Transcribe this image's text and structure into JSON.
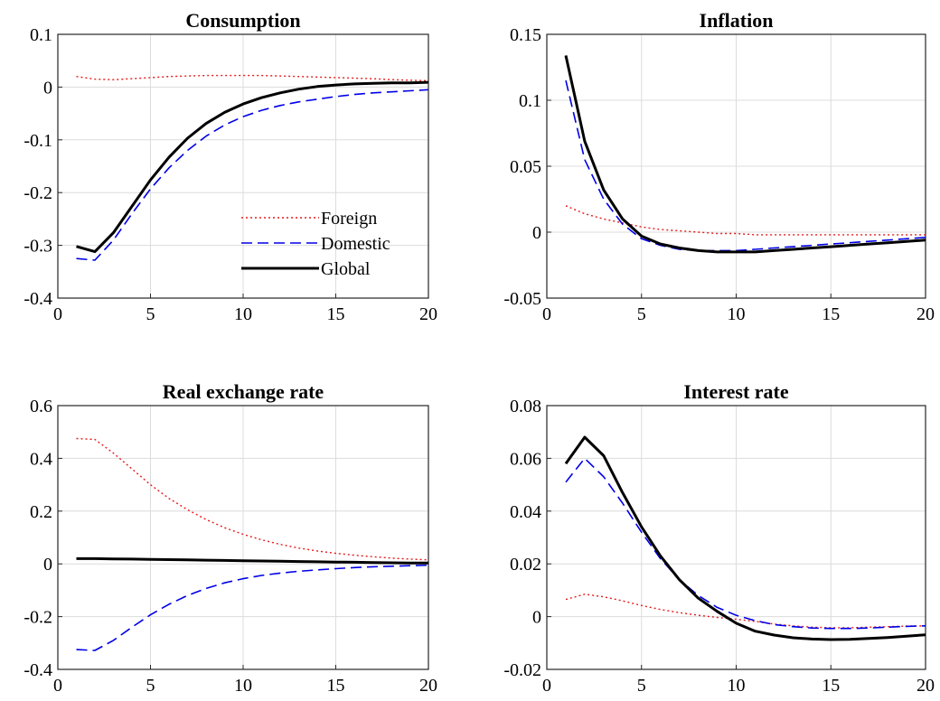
{
  "chart_data": [
    {
      "type": "line",
      "title": "Consumption",
      "xlabel": "",
      "ylabel": "",
      "xlim": [
        0,
        20
      ],
      "ylim": [
        -0.4,
        0.1
      ],
      "xticks": [
        0,
        5,
        10,
        15,
        20
      ],
      "yticks": [
        -0.4,
        -0.3,
        -0.2,
        -0.1,
        0,
        0.1
      ],
      "xtick_labels": [
        "0",
        "5",
        "10",
        "15",
        "20"
      ],
      "ytick_labels": [
        "-0.4",
        "-0.3",
        "-0.2",
        "-0.1",
        "0",
        "0.1"
      ],
      "grid": true,
      "legend": {
        "placement": "lower-right",
        "entries": [
          "Foreign",
          "Domestic",
          "Global"
        ]
      },
      "x": [
        1,
        2,
        3,
        4,
        5,
        6,
        7,
        8,
        9,
        10,
        11,
        12,
        13,
        14,
        15,
        16,
        17,
        18,
        19,
        20
      ],
      "series": [
        {
          "name": "Foreign",
          "style": "dotted",
          "color": "#e41a1c",
          "values": [
            0.02,
            0.015,
            0.014,
            0.016,
            0.018,
            0.02,
            0.021,
            0.022,
            0.022,
            0.022,
            0.022,
            0.021,
            0.02,
            0.019,
            0.018,
            0.017,
            0.016,
            0.014,
            0.013,
            0.012
          ]
        },
        {
          "name": "Domestic",
          "style": "dashed",
          "color": "#0000e6",
          "values": [
            -0.325,
            -0.328,
            -0.29,
            -0.24,
            -0.193,
            -0.153,
            -0.12,
            -0.093,
            -0.072,
            -0.056,
            -0.044,
            -0.035,
            -0.028,
            -0.023,
            -0.018,
            -0.014,
            -0.011,
            -0.009,
            -0.007,
            -0.005
          ]
        },
        {
          "name": "Global",
          "style": "solid",
          "color": "#000000",
          "values": [
            -0.302,
            -0.312,
            -0.276,
            -0.226,
            -0.176,
            -0.133,
            -0.097,
            -0.069,
            -0.048,
            -0.032,
            -0.02,
            -0.011,
            -0.004,
            0.001,
            0.004,
            0.006,
            0.007,
            0.008,
            0.008,
            0.009
          ]
        }
      ]
    },
    {
      "type": "line",
      "title": "Inflation",
      "xlabel": "",
      "ylabel": "",
      "xlim": [
        0,
        20
      ],
      "ylim": [
        -0.05,
        0.15
      ],
      "xticks": [
        0,
        5,
        10,
        15,
        20
      ],
      "yticks": [
        -0.05,
        0,
        0.05,
        0.1,
        0.15
      ],
      "xtick_labels": [
        "0",
        "5",
        "10",
        "15",
        "20"
      ],
      "ytick_labels": [
        "-0.05",
        "0",
        "0.05",
        "0.1",
        "0.15"
      ],
      "grid": true,
      "x": [
        1,
        2,
        3,
        4,
        5,
        6,
        7,
        8,
        9,
        10,
        11,
        12,
        13,
        14,
        15,
        16,
        17,
        18,
        19,
        20
      ],
      "series": [
        {
          "name": "Foreign",
          "style": "dotted",
          "color": "#e41a1c",
          "values": [
            0.02,
            0.014,
            0.01,
            0.007,
            0.004,
            0.002,
            0.001,
            0.0,
            -0.001,
            -0.001,
            -0.002,
            -0.002,
            -0.002,
            -0.002,
            -0.002,
            -0.002,
            -0.002,
            -0.002,
            -0.002,
            -0.002
          ]
        },
        {
          "name": "Domestic",
          "style": "dashed",
          "color": "#0000e6",
          "values": [
            0.115,
            0.055,
            0.025,
            0.006,
            -0.005,
            -0.01,
            -0.013,
            -0.014,
            -0.014,
            -0.014,
            -0.013,
            -0.012,
            -0.011,
            -0.01,
            -0.009,
            -0.008,
            -0.007,
            -0.006,
            -0.005,
            -0.004
          ]
        },
        {
          "name": "Global",
          "style": "solid",
          "color": "#000000",
          "values": [
            0.134,
            0.069,
            0.032,
            0.01,
            -0.003,
            -0.009,
            -0.012,
            -0.014,
            -0.015,
            -0.015,
            -0.015,
            -0.014,
            -0.013,
            -0.012,
            -0.011,
            -0.01,
            -0.009,
            -0.008,
            -0.007,
            -0.006
          ]
        }
      ]
    },
    {
      "type": "line",
      "title": "Real exchange rate",
      "xlabel": "",
      "ylabel": "",
      "xlim": [
        0,
        20
      ],
      "ylim": [
        -0.4,
        0.6
      ],
      "xticks": [
        0,
        5,
        10,
        15,
        20
      ],
      "yticks": [
        -0.4,
        -0.2,
        0,
        0.2,
        0.4,
        0.6
      ],
      "xtick_labels": [
        "0",
        "5",
        "10",
        "15",
        "20"
      ],
      "ytick_labels": [
        "-0.4",
        "-0.2",
        "0",
        "0.2",
        "0.4",
        "0.6"
      ],
      "grid": true,
      "x": [
        1,
        2,
        3,
        4,
        5,
        6,
        7,
        8,
        9,
        10,
        11,
        12,
        13,
        14,
        15,
        16,
        17,
        18,
        19,
        20
      ],
      "series": [
        {
          "name": "Foreign",
          "style": "dotted",
          "color": "#e41a1c",
          "values": [
            0.475,
            0.472,
            0.42,
            0.36,
            0.3,
            0.248,
            0.205,
            0.168,
            0.137,
            0.112,
            0.091,
            0.074,
            0.06,
            0.049,
            0.04,
            0.033,
            0.027,
            0.022,
            0.018,
            0.015
          ]
        },
        {
          "name": "Domestic",
          "style": "dashed",
          "color": "#0000e6",
          "values": [
            -0.325,
            -0.328,
            -0.29,
            -0.24,
            -0.193,
            -0.153,
            -0.12,
            -0.093,
            -0.072,
            -0.056,
            -0.044,
            -0.035,
            -0.028,
            -0.023,
            -0.018,
            -0.014,
            -0.011,
            -0.009,
            -0.007,
            -0.005
          ]
        },
        {
          "name": "Global",
          "style": "solid",
          "color": "#000000",
          "values": [
            0.02,
            0.02,
            0.019,
            0.018,
            0.017,
            0.016,
            0.015,
            0.014,
            0.013,
            0.012,
            0.011,
            0.01,
            0.009,
            0.008,
            0.007,
            0.006,
            0.005,
            0.004,
            0.003,
            0.003
          ]
        }
      ]
    },
    {
      "type": "line",
      "title": "Interest rate",
      "xlabel": "",
      "ylabel": "",
      "xlim": [
        0,
        20
      ],
      "ylim": [
        -0.02,
        0.08
      ],
      "xticks": [
        0,
        5,
        10,
        15,
        20
      ],
      "yticks": [
        -0.02,
        0,
        0.02,
        0.04,
        0.06,
        0.08
      ],
      "xtick_labels": [
        "0",
        "5",
        "10",
        "15",
        "20"
      ],
      "ytick_labels": [
        "-0.02",
        "0",
        "0.02",
        "0.04",
        "0.06",
        "0.08"
      ],
      "grid": true,
      "x": [
        1,
        2,
        3,
        4,
        5,
        6,
        7,
        8,
        9,
        10,
        11,
        12,
        13,
        14,
        15,
        16,
        17,
        18,
        19,
        20
      ],
      "series": [
        {
          "name": "Foreign",
          "style": "dotted",
          "color": "#e41a1c",
          "values": [
            0.0065,
            0.0085,
            0.0075,
            0.006,
            0.0042,
            0.0027,
            0.0015,
            0.0005,
            -0.0003,
            -0.001,
            -0.0018,
            -0.0028,
            -0.0035,
            -0.004,
            -0.0042,
            -0.0042,
            -0.004,
            -0.0038,
            -0.0036,
            -0.0035
          ]
        },
        {
          "name": "Domestic",
          "style": "dashed",
          "color": "#0000e6",
          "values": [
            0.051,
            0.06,
            0.053,
            0.043,
            0.032,
            0.022,
            0.014,
            0.008,
            0.0035,
            0.0005,
            -0.0015,
            -0.003,
            -0.0038,
            -0.0043,
            -0.0045,
            -0.0045,
            -0.0043,
            -0.004,
            -0.0037,
            -0.0035
          ]
        },
        {
          "name": "Global",
          "style": "solid",
          "color": "#000000",
          "values": [
            0.058,
            0.068,
            0.061,
            0.047,
            0.034,
            0.023,
            0.014,
            0.007,
            0.002,
            -0.0025,
            -0.0055,
            -0.007,
            -0.008,
            -0.0085,
            -0.0087,
            -0.0086,
            -0.0083,
            -0.0079,
            -0.0074,
            -0.0069
          ]
        }
      ]
    }
  ]
}
